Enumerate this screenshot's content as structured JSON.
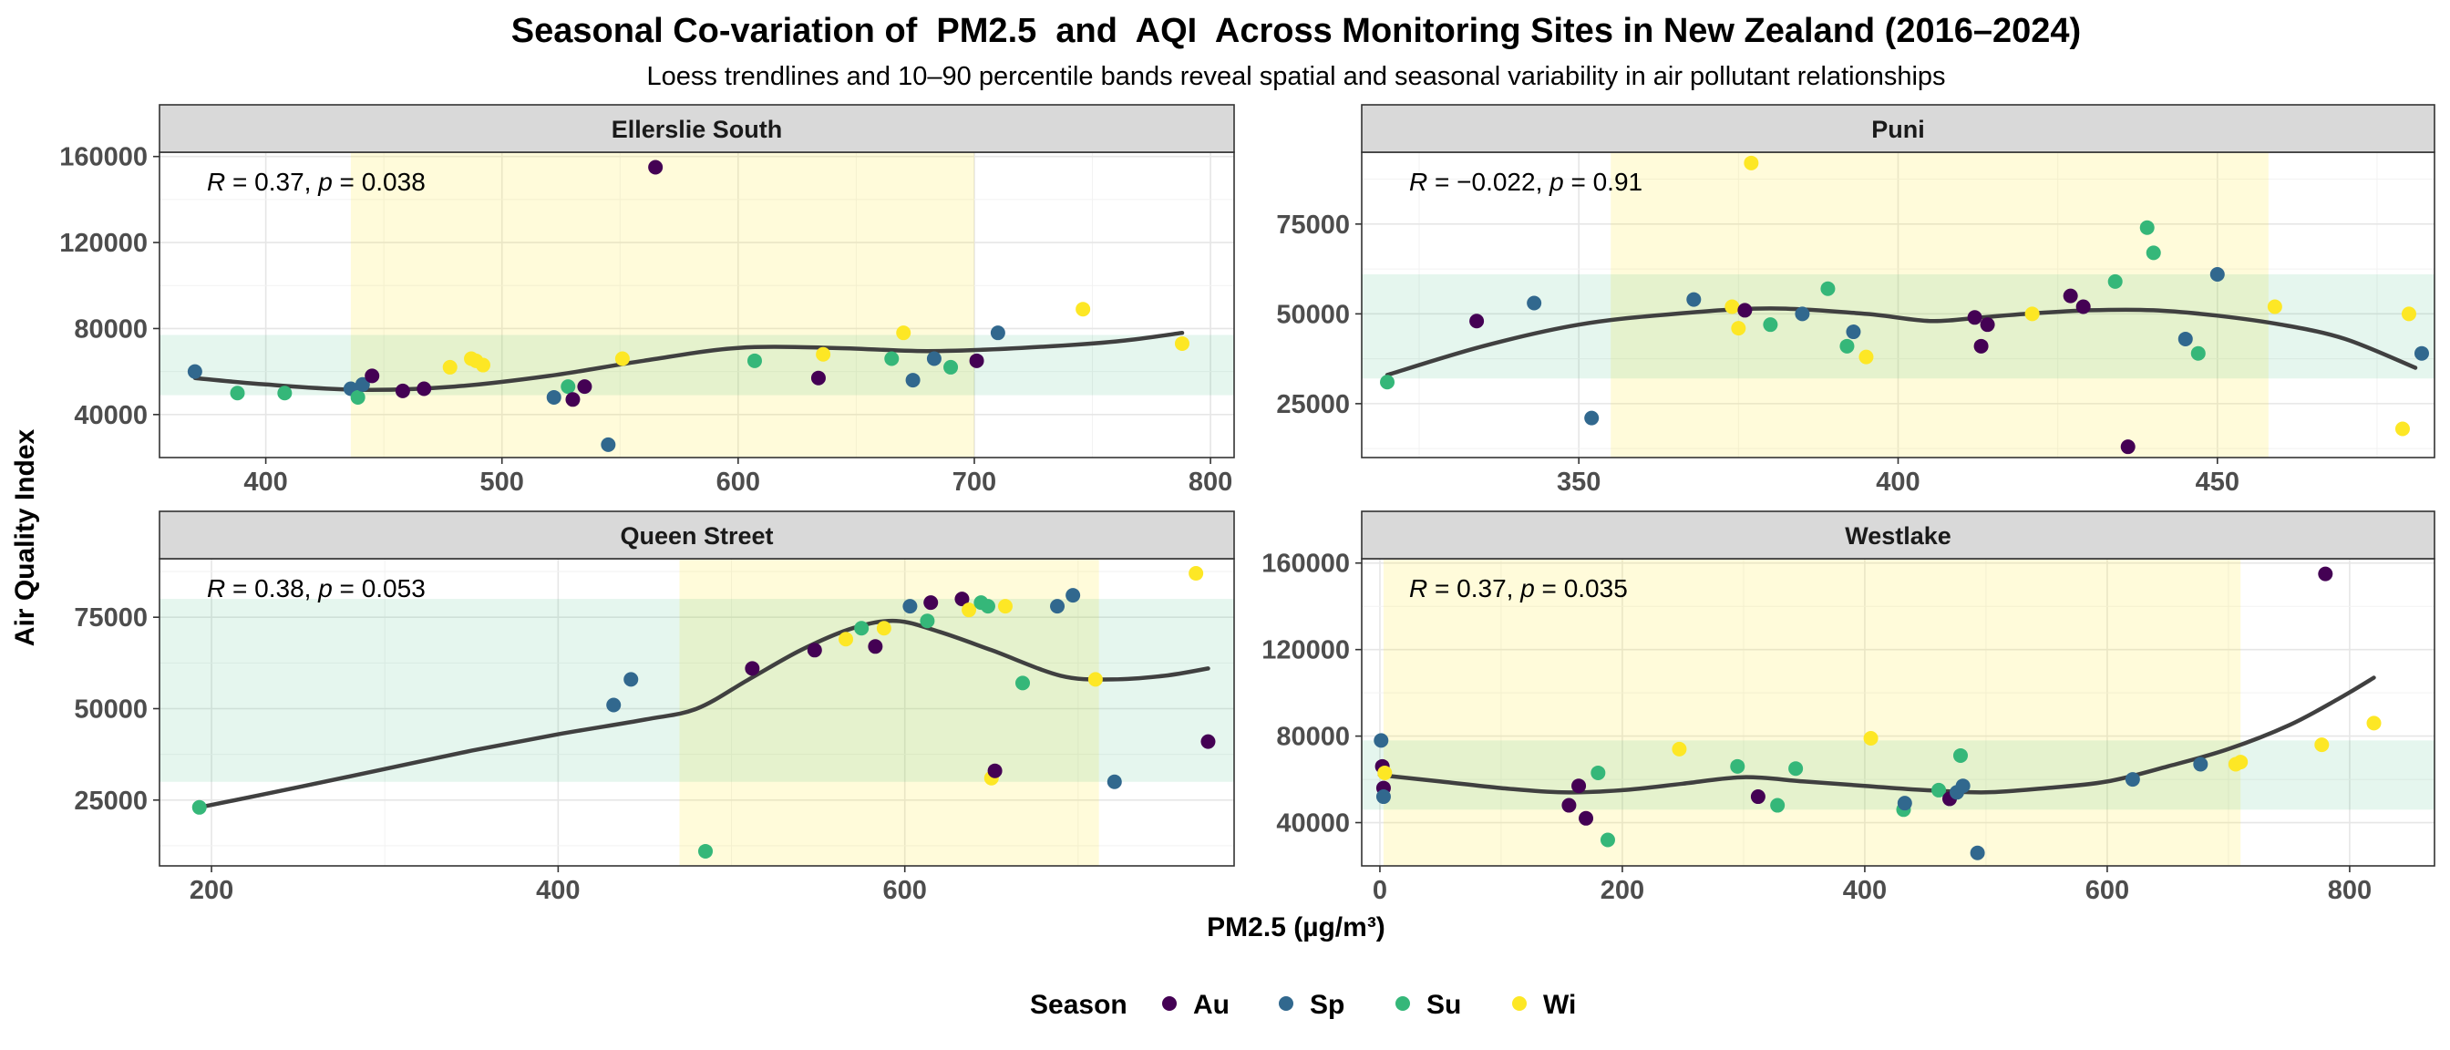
{
  "chart_data": {
    "type": "scatter",
    "title": "Seasonal Co-variation of  PM2.5  and  AQI  Across Monitoring Sites in New Zealand (2016–2024)",
    "subtitle": "Loess trendlines and 10–90 percentile bands reveal spatial and seasonal variability in air pollutant relationships",
    "xlabel": "PM2.5 (µg/m³)",
    "ylabel": "Air Quality Index",
    "legend": {
      "title": "Season",
      "position": "bottom",
      "entries": [
        {
          "name": "Au",
          "color": "#440154"
        },
        {
          "name": "Sp",
          "color": "#31688E"
        },
        {
          "name": "Su",
          "color": "#35B779"
        },
        {
          "name": "Wi",
          "color": "#FDE725"
        }
      ]
    },
    "colors": {
      "x_band": "#FFF3D6",
      "y_band": "#E3F2EA",
      "overlap_band": "#EDF0D5",
      "trend": "#404040",
      "strip_bg": "#D9D9D9"
    },
    "grid": true,
    "panels": [
      {
        "name": "Ellerslie South",
        "annotation": {
          "R": "0.37",
          "p": "0.038"
        },
        "xlim": [
          355,
          810
        ],
        "ylim": [
          20000,
          162000
        ],
        "xticks": [
          400,
          500,
          600,
          700,
          800
        ],
        "xtick_labels": [
          "400",
          "500",
          "600",
          "700",
          "800"
        ],
        "yticks": [
          40000,
          80000,
          120000,
          160000
        ],
        "ytick_labels": [
          "40000",
          "80000",
          "120000",
          "160000"
        ],
        "x_band": [
          436,
          700
        ],
        "y_band": [
          49000,
          77000
        ],
        "trend": [
          [
            370,
            57000
          ],
          [
            400,
            54000
          ],
          [
            440,
            51500
          ],
          [
            480,
            53000
          ],
          [
            520,
            58000
          ],
          [
            560,
            65000
          ],
          [
            600,
            71000
          ],
          [
            640,
            71000
          ],
          [
            680,
            69500
          ],
          [
            720,
            71000
          ],
          [
            760,
            74000
          ],
          [
            788,
            78000
          ]
        ],
        "points": [
          {
            "x": 370,
            "y": 60000,
            "season": "Sp"
          },
          {
            "x": 388,
            "y": 50000,
            "season": "Su"
          },
          {
            "x": 408,
            "y": 50000,
            "season": "Su"
          },
          {
            "x": 436,
            "y": 52000,
            "season": "Sp"
          },
          {
            "x": 439,
            "y": 48000,
            "season": "Su"
          },
          {
            "x": 441,
            "y": 54000,
            "season": "Sp"
          },
          {
            "x": 445,
            "y": 58000,
            "season": "Au"
          },
          {
            "x": 458,
            "y": 51000,
            "season": "Au"
          },
          {
            "x": 467,
            "y": 52000,
            "season": "Au"
          },
          {
            "x": 478,
            "y": 62000,
            "season": "Wi"
          },
          {
            "x": 487,
            "y": 66000,
            "season": "Wi"
          },
          {
            "x": 489,
            "y": 65000,
            "season": "Wi"
          },
          {
            "x": 492,
            "y": 63000,
            "season": "Wi"
          },
          {
            "x": 522,
            "y": 48000,
            "season": "Sp"
          },
          {
            "x": 528,
            "y": 53000,
            "season": "Su"
          },
          {
            "x": 530,
            "y": 47000,
            "season": "Au"
          },
          {
            "x": 535,
            "y": 53000,
            "season": "Au"
          },
          {
            "x": 545,
            "y": 26000,
            "season": "Sp"
          },
          {
            "x": 551,
            "y": 66000,
            "season": "Wi"
          },
          {
            "x": 565,
            "y": 155000,
            "season": "Au"
          },
          {
            "x": 607,
            "y": 65000,
            "season": "Su"
          },
          {
            "x": 634,
            "y": 57000,
            "season": "Au"
          },
          {
            "x": 636,
            "y": 68000,
            "season": "Wi"
          },
          {
            "x": 665,
            "y": 66000,
            "season": "Su"
          },
          {
            "x": 670,
            "y": 78000,
            "season": "Wi"
          },
          {
            "x": 674,
            "y": 56000,
            "season": "Sp"
          },
          {
            "x": 683,
            "y": 66000,
            "season": "Sp"
          },
          {
            "x": 690,
            "y": 62000,
            "season": "Su"
          },
          {
            "x": 701,
            "y": 65000,
            "season": "Au"
          },
          {
            "x": 710,
            "y": 78000,
            "season": "Sp"
          },
          {
            "x": 746,
            "y": 89000,
            "season": "Wi"
          },
          {
            "x": 788,
            "y": 73000,
            "season": "Wi"
          }
        ]
      },
      {
        "name": "Puni",
        "annotation": {
          "R": "−0.022",
          "p": "0.91"
        },
        "xlim": [
          316,
          484
        ],
        "ylim": [
          10000,
          95000
        ],
        "xticks": [
          350,
          400,
          450
        ],
        "xtick_labels": [
          "350",
          "400",
          "450"
        ],
        "yticks": [
          25000,
          50000,
          75000
        ],
        "ytick_labels": [
          "25000",
          "50000",
          "75000"
        ],
        "x_band": [
          355,
          458
        ],
        "y_band": [
          32000,
          61000
        ],
        "trend": [
          [
            320,
            33000
          ],
          [
            335,
            41000
          ],
          [
            350,
            47000
          ],
          [
            365,
            50000
          ],
          [
            380,
            51500
          ],
          [
            395,
            50000
          ],
          [
            405,
            48000
          ],
          [
            413,
            49000
          ],
          [
            420,
            50000
          ],
          [
            430,
            51000
          ],
          [
            440,
            51000
          ],
          [
            450,
            49500
          ],
          [
            460,
            47000
          ],
          [
            470,
            43000
          ],
          [
            481,
            35000
          ]
        ],
        "points": [
          {
            "x": 320,
            "y": 31000,
            "season": "Su"
          },
          {
            "x": 334,
            "y": 48000,
            "season": "Au"
          },
          {
            "x": 343,
            "y": 53000,
            "season": "Sp"
          },
          {
            "x": 352,
            "y": 21000,
            "season": "Sp"
          },
          {
            "x": 368,
            "y": 54000,
            "season": "Sp"
          },
          {
            "x": 374,
            "y": 52000,
            "season": "Wi"
          },
          {
            "x": 375,
            "y": 46000,
            "season": "Wi"
          },
          {
            "x": 376,
            "y": 51000,
            "season": "Au"
          },
          {
            "x": 377,
            "y": 92000,
            "season": "Wi"
          },
          {
            "x": 380,
            "y": 47000,
            "season": "Su"
          },
          {
            "x": 385,
            "y": 50000,
            "season": "Sp"
          },
          {
            "x": 389,
            "y": 57000,
            "season": "Su"
          },
          {
            "x": 392,
            "y": 41000,
            "season": "Su"
          },
          {
            "x": 393,
            "y": 45000,
            "season": "Sp"
          },
          {
            "x": 395,
            "y": 38000,
            "season": "Wi"
          },
          {
            "x": 412,
            "y": 49000,
            "season": "Au"
          },
          {
            "x": 413,
            "y": 41000,
            "season": "Au"
          },
          {
            "x": 414,
            "y": 47000,
            "season": "Au"
          },
          {
            "x": 421,
            "y": 50000,
            "season": "Wi"
          },
          {
            "x": 427,
            "y": 55000,
            "season": "Au"
          },
          {
            "x": 429,
            "y": 52000,
            "season": "Au"
          },
          {
            "x": 434,
            "y": 59000,
            "season": "Su"
          },
          {
            "x": 436,
            "y": 13000,
            "season": "Au"
          },
          {
            "x": 439,
            "y": 74000,
            "season": "Su"
          },
          {
            "x": 440,
            "y": 67000,
            "season": "Su"
          },
          {
            "x": 445,
            "y": 43000,
            "season": "Sp"
          },
          {
            "x": 447,
            "y": 39000,
            "season": "Su"
          },
          {
            "x": 450,
            "y": 61000,
            "season": "Sp"
          },
          {
            "x": 459,
            "y": 52000,
            "season": "Wi"
          },
          {
            "x": 479,
            "y": 18000,
            "season": "Wi"
          },
          {
            "x": 480,
            "y": 50000,
            "season": "Wi"
          },
          {
            "x": 482,
            "y": 39000,
            "season": "Sp"
          }
        ]
      },
      {
        "name": "Queen Street",
        "annotation": {
          "R": "0.38",
          "p": "0.053"
        },
        "xlim": [
          170,
          790
        ],
        "ylim": [
          7000,
          91000
        ],
        "xticks": [
          200,
          400,
          600
        ],
        "xtick_labels": [
          "200",
          "400",
          "600"
        ],
        "yticks": [
          25000,
          50000,
          75000
        ],
        "ytick_labels": [
          "25000",
          "50000",
          "75000"
        ],
        "x_band": [
          470,
          712
        ],
        "y_band": [
          30000,
          80000
        ],
        "trend": [
          [
            193,
            23000
          ],
          [
            250,
            28500
          ],
          [
            300,
            33500
          ],
          [
            350,
            38500
          ],
          [
            400,
            43000
          ],
          [
            450,
            47000
          ],
          [
            480,
            50000
          ],
          [
            510,
            58000
          ],
          [
            540,
            66000
          ],
          [
            570,
            72000
          ],
          [
            595,
            74000
          ],
          [
            620,
            71000
          ],
          [
            650,
            66000
          ],
          [
            690,
            59000
          ],
          [
            720,
            58000
          ],
          [
            750,
            59000
          ],
          [
            775,
            61000
          ]
        ],
        "points": [
          {
            "x": 193,
            "y": 23000,
            "season": "Su"
          },
          {
            "x": 432,
            "y": 51000,
            "season": "Sp"
          },
          {
            "x": 442,
            "y": 58000,
            "season": "Sp"
          },
          {
            "x": 485,
            "y": 11000,
            "season": "Su"
          },
          {
            "x": 512,
            "y": 61000,
            "season": "Au"
          },
          {
            "x": 548,
            "y": 66000,
            "season": "Au"
          },
          {
            "x": 566,
            "y": 69000,
            "season": "Wi"
          },
          {
            "x": 575,
            "y": 72000,
            "season": "Su"
          },
          {
            "x": 583,
            "y": 67000,
            "season": "Au"
          },
          {
            "x": 588,
            "y": 72000,
            "season": "Wi"
          },
          {
            "x": 603,
            "y": 78000,
            "season": "Sp"
          },
          {
            "x": 613,
            "y": 74000,
            "season": "Su"
          },
          {
            "x": 615,
            "y": 79000,
            "season": "Au"
          },
          {
            "x": 633,
            "y": 80000,
            "season": "Au"
          },
          {
            "x": 637,
            "y": 77000,
            "season": "Wi"
          },
          {
            "x": 644,
            "y": 79000,
            "season": "Su"
          },
          {
            "x": 648,
            "y": 78000,
            "season": "Su"
          },
          {
            "x": 650,
            "y": 31000,
            "season": "Wi"
          },
          {
            "x": 652,
            "y": 33000,
            "season": "Au"
          },
          {
            "x": 658,
            "y": 78000,
            "season": "Wi"
          },
          {
            "x": 668,
            "y": 57000,
            "season": "Su"
          },
          {
            "x": 688,
            "y": 78000,
            "season": "Sp"
          },
          {
            "x": 697,
            "y": 81000,
            "season": "Sp"
          },
          {
            "x": 710,
            "y": 58000,
            "season": "Wi"
          },
          {
            "x": 721,
            "y": 30000,
            "season": "Sp"
          },
          {
            "x": 768,
            "y": 87000,
            "season": "Wi"
          },
          {
            "x": 775,
            "y": 41000,
            "season": "Au"
          }
        ]
      },
      {
        "name": "Westlake",
        "annotation": {
          "R": "0.37",
          "p": "0.035"
        },
        "xlim": [
          -15,
          870
        ],
        "ylim": [
          20000,
          162000
        ],
        "xticks": [
          0,
          200,
          400,
          600,
          800
        ],
        "xtick_labels": [
          "0",
          "200",
          "400",
          "600",
          "800"
        ],
        "yticks": [
          40000,
          80000,
          120000,
          160000
        ],
        "ytick_labels": [
          "40000",
          "80000",
          "120000",
          "160000"
        ],
        "x_band": [
          3,
          710
        ],
        "y_band": [
          46000,
          78000
        ],
        "trend": [
          [
            0,
            62000
          ],
          [
            50,
            59000
          ],
          [
            100,
            56000
          ],
          [
            150,
            54000
          ],
          [
            200,
            55000
          ],
          [
            250,
            58000
          ],
          [
            300,
            61000
          ],
          [
            350,
            59000
          ],
          [
            400,
            57000
          ],
          [
            450,
            55000
          ],
          [
            500,
            54000
          ],
          [
            550,
            56000
          ],
          [
            600,
            59000
          ],
          [
            650,
            66000
          ],
          [
            700,
            74000
          ],
          [
            750,
            85000
          ],
          [
            790,
            97000
          ],
          [
            820,
            107000
          ]
        ],
        "points": [
          {
            "x": 1,
            "y": 78000,
            "season": "Sp"
          },
          {
            "x": 2,
            "y": 66000,
            "season": "Au"
          },
          {
            "x": 3,
            "y": 56000,
            "season": "Au"
          },
          {
            "x": 3,
            "y": 52000,
            "season": "Sp"
          },
          {
            "x": 4,
            "y": 63000,
            "season": "Wi"
          },
          {
            "x": 156,
            "y": 48000,
            "season": "Au"
          },
          {
            "x": 164,
            "y": 57000,
            "season": "Au"
          },
          {
            "x": 170,
            "y": 42000,
            "season": "Au"
          },
          {
            "x": 180,
            "y": 63000,
            "season": "Su"
          },
          {
            "x": 188,
            "y": 32000,
            "season": "Su"
          },
          {
            "x": 247,
            "y": 74000,
            "season": "Wi"
          },
          {
            "x": 295,
            "y": 66000,
            "season": "Su"
          },
          {
            "x": 312,
            "y": 52000,
            "season": "Au"
          },
          {
            "x": 328,
            "y": 48000,
            "season": "Su"
          },
          {
            "x": 343,
            "y": 65000,
            "season": "Su"
          },
          {
            "x": 405,
            "y": 79000,
            "season": "Wi"
          },
          {
            "x": 432,
            "y": 46000,
            "season": "Su"
          },
          {
            "x": 433,
            "y": 49000,
            "season": "Sp"
          },
          {
            "x": 461,
            "y": 55000,
            "season": "Su"
          },
          {
            "x": 470,
            "y": 51000,
            "season": "Au"
          },
          {
            "x": 476,
            "y": 54000,
            "season": "Sp"
          },
          {
            "x": 479,
            "y": 71000,
            "season": "Su"
          },
          {
            "x": 481,
            "y": 57000,
            "season": "Sp"
          },
          {
            "x": 493,
            "y": 26000,
            "season": "Sp"
          },
          {
            "x": 621,
            "y": 60000,
            "season": "Sp"
          },
          {
            "x": 677,
            "y": 67000,
            "season": "Sp"
          },
          {
            "x": 706,
            "y": 67000,
            "season": "Wi"
          },
          {
            "x": 710,
            "y": 68000,
            "season": "Wi"
          },
          {
            "x": 777,
            "y": 76000,
            "season": "Wi"
          },
          {
            "x": 780,
            "y": 155000,
            "season": "Au"
          },
          {
            "x": 820,
            "y": 86000,
            "season": "Wi"
          }
        ]
      }
    ]
  }
}
